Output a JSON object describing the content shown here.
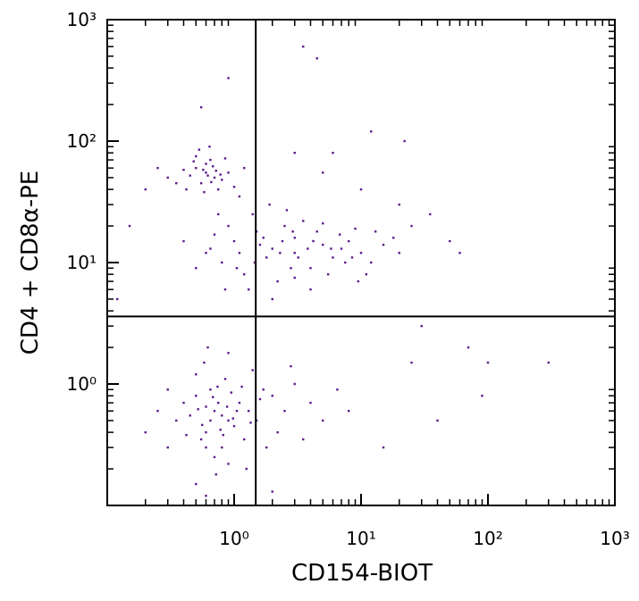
{
  "chart_data": {
    "type": "scatter",
    "x_label": "CD154-BIOT",
    "y_label": "CD4 + CD8α-PE",
    "log_x": true,
    "log_y": true,
    "xlim": [
      0.1,
      1000
    ],
    "ylim": [
      0.1,
      1000
    ],
    "xticks": [
      {
        "value": 1,
        "label": "10⁰"
      },
      {
        "value": 10,
        "label": "10¹"
      },
      {
        "value": 100,
        "label": "10²"
      },
      {
        "value": 1000,
        "label": "10³"
      }
    ],
    "yticks": [
      {
        "value": 1,
        "label": "10⁰"
      },
      {
        "value": 10,
        "label": "10¹"
      },
      {
        "value": 100,
        "label": "10²"
      },
      {
        "value": 1000,
        "label": "10³"
      }
    ],
    "quadrant_x": 1.48,
    "quadrant_y": 3.6,
    "color": "#5c1a8c",
    "x": [
      0.7,
      0.5,
      0.9,
      0.6,
      1.1,
      0.8,
      0.45,
      0.65,
      1.3,
      0.75,
      0.55,
      1.0,
      0.85,
      0.6,
      1.5,
      2.0,
      0.4,
      0.7,
      1.2,
      0.95,
      0.5,
      0.35,
      1.7,
      2.5,
      3.0,
      0.8,
      0.65,
      1.05,
      0.9,
      0.72,
      0.58,
      1.4,
      0.3,
      0.25,
      2.2,
      1.8,
      0.6,
      0.78,
      0.88,
      0.68,
      4.0,
      5.0,
      0.52,
      1.15,
      0.42,
      1.25,
      0.62,
      0.9,
      0.5,
      3.5,
      1.6,
      0.98,
      0.74,
      0.56,
      0.82,
      1.35,
      6.5,
      8.0,
      0.3,
      2.8,
      0.6,
      0.5,
      0.7,
      0.55,
      0.65,
      0.45,
      0.8,
      0.6,
      0.4,
      0.75,
      0.5,
      0.9,
      0.35,
      0.68,
      0.58,
      0.62,
      0.48,
      0.72,
      1.0,
      0.3,
      0.85,
      0.53,
      0.66,
      0.57,
      1.2,
      0.42,
      0.78,
      0.64,
      0.25,
      1.1,
      2,
      1,
      3,
      5,
      0.8,
      1.5,
      4,
      7,
      10,
      2.5,
      0.6,
      1.2,
      3,
      6,
      8,
      1.8,
      2.2,
      0.9,
      12,
      4.5,
      1.4,
      3.5,
      0.7,
      2.8,
      5.5,
      9,
      15,
      1.1,
      1.6,
      2.4,
      3.2,
      0.5,
      6.8,
      0.75,
      1.3,
      2,
      4,
      11,
      18,
      20,
      0.4,
      3.8,
      5,
      2.6,
      1.9,
      7.5,
      13,
      1.05,
      0.85,
      2.3,
      1.7,
      4.2,
      3,
      8.5,
      0.65,
      25,
      1.45,
      9.5,
      5.8,
      2.9,
      0.2,
      0.15,
      0.12,
      3,
      5,
      10,
      20,
      35,
      50,
      60,
      25,
      40,
      70,
      100,
      300,
      90,
      15,
      6,
      30,
      0.9,
      3.5,
      4.5,
      0.55,
      12,
      22,
      0.6,
      2,
      0.2
    ],
    "values": [
      0.6,
      0.8,
      0.5,
      0.4,
      0.7,
      0.3,
      0.55,
      0.9,
      0.6,
      0.7,
      0.35,
      0.45,
      1.1,
      0.65,
      0.5,
      0.8,
      0.7,
      0.25,
      0.35,
      0.85,
      1.2,
      0.5,
      0.9,
      0.6,
      1.0,
      0.55,
      0.5,
      0.6,
      0.22,
      0.18,
      1.5,
      1.3,
      0.9,
      0.6,
      0.4,
      0.3,
      0.3,
      0.42,
      0.65,
      0.78,
      0.7,
      0.5,
      0.62,
      0.95,
      0.38,
      0.2,
      2.0,
      1.8,
      0.15,
      0.35,
      0.75,
      0.52,
      0.95,
      0.46,
      0.38,
      0.48,
      0.9,
      0.6,
      0.3,
      1.4,
      55,
      60,
      50,
      45,
      70,
      52,
      48,
      65,
      58,
      40,
      75,
      55,
      45,
      62,
      38,
      52,
      68,
      57,
      42,
      50,
      72,
      85,
      46,
      58,
      60,
      40,
      53,
      90,
      60,
      35,
      13,
      15,
      12,
      14,
      10,
      18,
      9,
      13,
      12,
      20,
      12,
      8,
      16,
      11,
      15,
      11,
      7,
      20,
      10,
      18,
      25,
      22,
      17,
      9,
      8,
      19,
      14,
      12,
      14,
      15,
      11,
      9,
      17,
      25,
      6,
      5,
      6,
      8,
      16,
      12,
      15,
      13,
      21,
      27,
      30,
      10,
      18,
      9,
      6,
      12,
      16,
      15,
      7.5,
      11,
      13,
      20,
      10,
      7,
      13,
      18,
      40,
      20,
      5,
      80,
      55,
      40,
      30,
      25,
      15,
      12,
      1.5,
      0.5,
      2,
      1.5,
      1.5,
      0.8,
      0.3,
      80,
      3,
      330,
      600,
      480,
      190,
      120,
      100,
      0.12,
      0.13,
      0.4
    ]
  }
}
